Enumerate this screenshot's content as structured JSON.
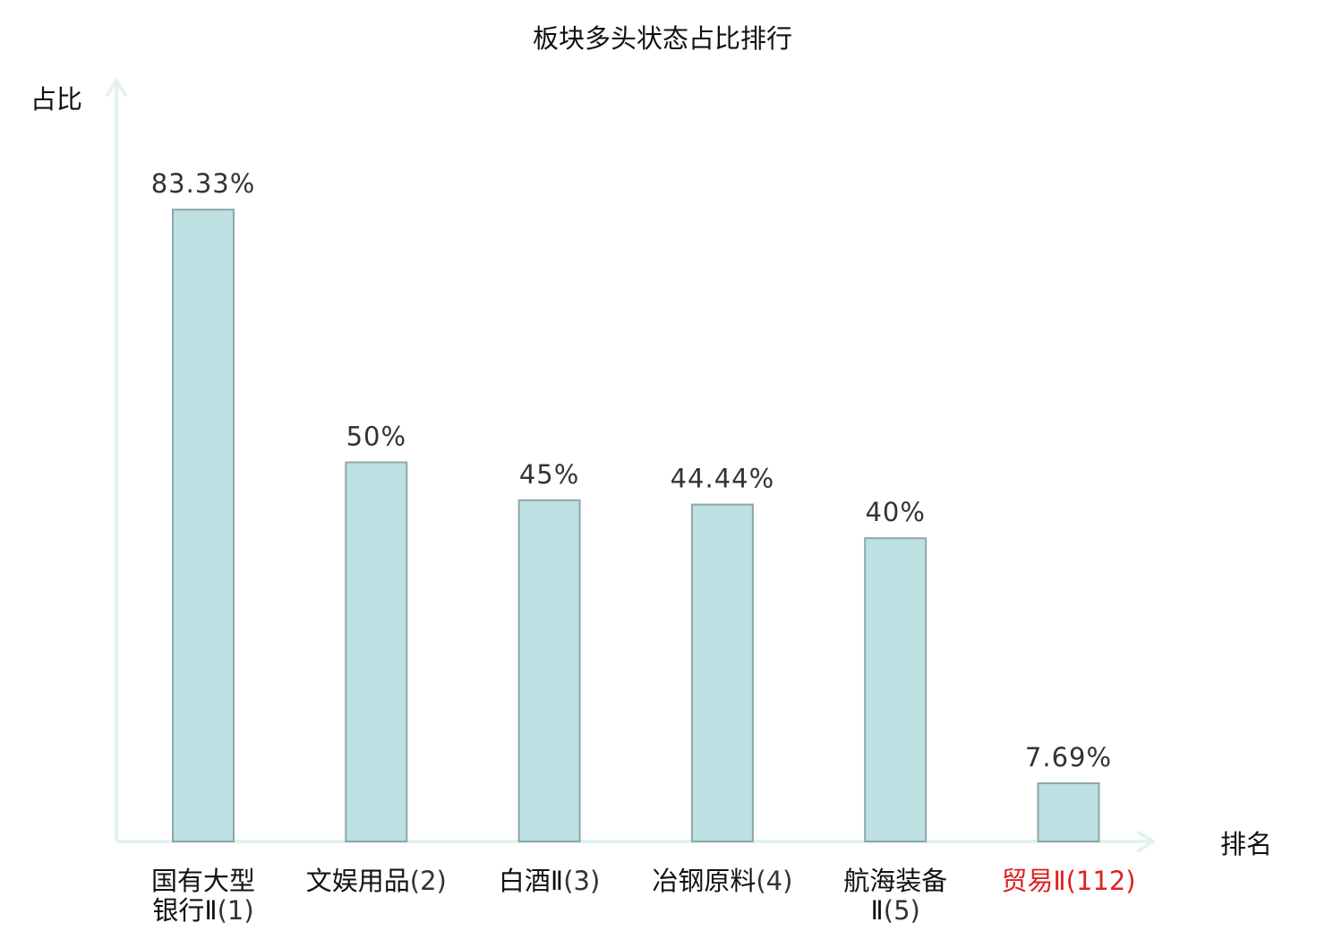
{
  "chart_data": {
    "type": "bar",
    "title": "板块多头状态占比排行",
    "ylabel": "占比",
    "xlabel": "排名",
    "ylim": [
      0,
      100
    ],
    "grid": false,
    "categories": [
      {
        "name_lines": [
          "国有大型",
          "银行Ⅱ"
        ],
        "rank": "(1)",
        "highlight": false
      },
      {
        "name_lines": [
          "文娱用品"
        ],
        "rank": "(2)",
        "highlight": false
      },
      {
        "name_lines": [
          "白酒Ⅱ"
        ],
        "rank": "(3)",
        "highlight": false
      },
      {
        "name_lines": [
          "冶钢原料"
        ],
        "rank": "(4)",
        "highlight": false
      },
      {
        "name_lines": [
          "航海装备",
          "Ⅱ"
        ],
        "rank": "(5)",
        "highlight": false
      },
      {
        "name_lines": [
          "贸易Ⅱ"
        ],
        "rank": "(112)",
        "highlight": true
      }
    ],
    "values": [
      83.33,
      50,
      45,
      44.44,
      40,
      7.69
    ],
    "value_labels": [
      "83.33%",
      "50%",
      "45%",
      "44.44%",
      "40%",
      "7.69%"
    ],
    "colors": {
      "bar_fill": "#bde0e3",
      "bar_stroke": "#8ea7a9",
      "axis": "#e3f2f1",
      "highlight": "#e02020"
    }
  }
}
